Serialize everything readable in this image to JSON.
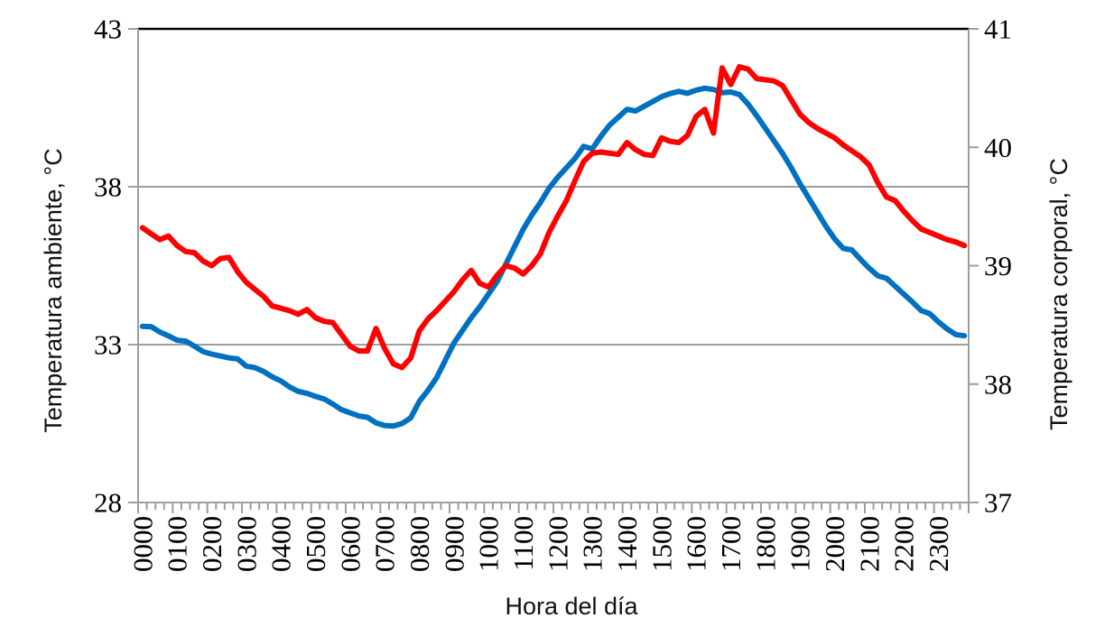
{
  "chart_data": {
    "type": "line",
    "title": "",
    "x_axis": {
      "title": "Hora del día",
      "tick_labels": [
        "0000",
        "0100",
        "0200",
        "0300",
        "0400",
        "0500",
        "0600",
        "0700",
        "0800",
        "0900",
        "1000",
        "1100",
        "1200",
        "1300",
        "1400",
        "1500",
        "1600",
        "1700",
        "1800",
        "1900",
        "2000",
        "2100",
        "2200",
        "2300"
      ],
      "minor_tick_minutes": 15,
      "hours_span": 24
    },
    "left_axis": {
      "title": "Temperatura ambiente, °C",
      "ticks": [
        28,
        33,
        38,
        43
      ],
      "range": [
        28,
        43
      ]
    },
    "right_axis": {
      "title": "Temperatura corporal, °C",
      "ticks": [
        37,
        38,
        39,
        40,
        41
      ],
      "range": [
        37,
        41
      ]
    },
    "gridlines_left_values": [
      33,
      38
    ],
    "grid_on": true,
    "legend": "none",
    "x_start_hours": 0.125,
    "x_step_hours": 0.25,
    "series": [
      {
        "name": "Temperatura ambiente",
        "axis": "left",
        "color": "#0070C0",
        "values": [
          33.58,
          33.57,
          33.4,
          33.28,
          33.14,
          33.11,
          32.95,
          32.78,
          32.7,
          32.64,
          32.58,
          32.55,
          32.32,
          32.27,
          32.15,
          31.98,
          31.85,
          31.66,
          31.52,
          31.46,
          31.36,
          31.28,
          31.12,
          30.94,
          30.84,
          30.74,
          30.7,
          30.52,
          30.44,
          30.42,
          30.5,
          30.68,
          31.2,
          31.55,
          31.95,
          32.5,
          33.05,
          33.45,
          33.85,
          34.2,
          34.6,
          35.0,
          35.55,
          36.1,
          36.65,
          37.1,
          37.5,
          37.95,
          38.3,
          38.6,
          38.9,
          39.28,
          39.2,
          39.6,
          39.95,
          40.2,
          40.45,
          40.4,
          40.55,
          40.7,
          40.85,
          40.95,
          41.02,
          40.96,
          41.06,
          41.12,
          41.08,
          40.98,
          41.0,
          40.92,
          40.62,
          40.25,
          39.85,
          39.45,
          39.05,
          38.6,
          38.1,
          37.65,
          37.2,
          36.75,
          36.35,
          36.05,
          36.0,
          35.7,
          35.42,
          35.18,
          35.1,
          34.85,
          34.6,
          34.35,
          34.08,
          33.98,
          33.72,
          33.5,
          33.32,
          33.28
        ]
      },
      {
        "name": "Temperatura corporal",
        "axis": "right",
        "color": "#FF0000",
        "values": [
          39.32,
          39.27,
          39.22,
          39.25,
          39.17,
          39.12,
          39.11,
          39.04,
          39.0,
          39.06,
          39.07,
          38.95,
          38.86,
          38.8,
          38.74,
          38.66,
          38.64,
          38.62,
          38.59,
          38.63,
          38.56,
          38.53,
          38.52,
          38.42,
          38.32,
          38.28,
          38.28,
          38.47,
          38.3,
          38.17,
          38.14,
          38.22,
          38.45,
          38.55,
          38.62,
          38.7,
          38.78,
          38.88,
          38.96,
          38.85,
          38.82,
          38.92,
          39.0,
          38.98,
          38.93,
          39.0,
          39.1,
          39.28,
          39.42,
          39.55,
          39.72,
          39.88,
          39.95,
          39.96,
          39.95,
          39.94,
          40.04,
          39.98,
          39.94,
          39.93,
          40.08,
          40.05,
          40.04,
          40.1,
          40.26,
          40.32,
          40.12,
          40.67,
          40.53,
          40.68,
          40.66,
          40.58,
          40.57,
          40.56,
          40.52,
          40.4,
          40.28,
          40.21,
          40.16,
          40.12,
          40.08,
          40.02,
          39.97,
          39.92,
          39.85,
          39.7,
          39.58,
          39.55,
          39.46,
          39.38,
          39.31,
          39.28,
          39.25,
          39.22,
          39.2,
          39.17
        ]
      }
    ],
    "colors": {
      "ambient_line": "#0070C0",
      "body_line": "#FF0000",
      "grid": "#9d9d9d",
      "top_border": "#000000",
      "text": "#000000"
    }
  }
}
